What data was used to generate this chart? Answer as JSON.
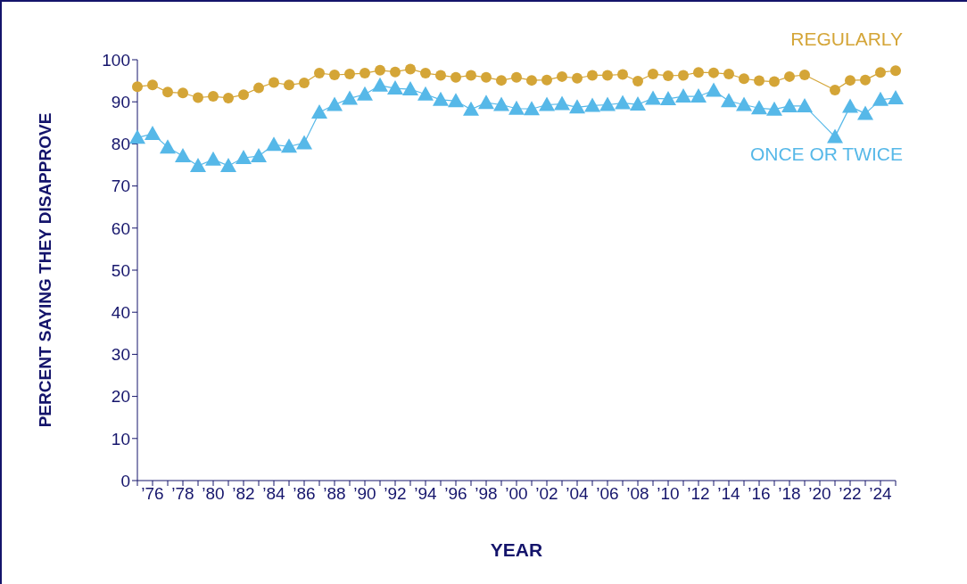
{
  "chart_data": {
    "type": "line",
    "xlabel": "YEAR",
    "ylabel": "PERCENT SAYING THEY DISAPPROVE",
    "categories": [
      null,
      "’76",
      null,
      "’78",
      null,
      "’80",
      null,
      "’82",
      null,
      "’84",
      null,
      "’86",
      null,
      "’88",
      null,
      "’90",
      null,
      "’92",
      null,
      "’94",
      null,
      "’96",
      null,
      "’98",
      null,
      "’00",
      null,
      "’02",
      null,
      "’04",
      null,
      "’06",
      null,
      "’08",
      null,
      "’10",
      null,
      "’12",
      null,
      "’14",
      null,
      "’16",
      null,
      "’18",
      null,
      "’20",
      null,
      "’22",
      null,
      "’24",
      null
    ],
    "ylim": [
      0,
      100
    ],
    "yticks": [
      0,
      10,
      20,
      30,
      40,
      50,
      60,
      70,
      80,
      90,
      100
    ],
    "series": [
      {
        "name": "REGULARLY",
        "color": "#d4a537",
        "marker": "circle",
        "values": [
          93.6,
          94.0,
          92.3,
          92.1,
          91.0,
          91.3,
          90.9,
          91.7,
          93.3,
          94.6,
          94.0,
          94.5,
          96.8,
          96.4,
          96.6,
          96.8,
          97.5,
          97.1,
          97.8,
          96.8,
          96.3,
          95.8,
          96.3,
          95.8,
          95.1,
          95.8,
          95.1,
          95.2,
          96.0,
          95.6,
          96.3,
          96.3,
          96.5,
          94.9,
          96.6,
          96.2,
          96.3,
          97.0,
          96.9,
          96.6,
          95.5,
          95.0,
          94.8,
          96.0,
          96.4,
          null,
          92.8,
          95.1,
          95.2,
          97.0,
          97.4
        ]
      },
      {
        "name": "ONCE OR TWICE",
        "color": "#56b8e8",
        "marker": "triangle",
        "values": [
          81.5,
          82.4,
          79.2,
          77.1,
          74.8,
          76.3,
          74.8,
          76.7,
          77.1,
          79.8,
          79.4,
          80.2,
          87.5,
          89.3,
          90.8,
          91.8,
          93.9,
          93.2,
          93.0,
          91.8,
          90.5,
          90.2,
          88.2,
          89.8,
          89.3,
          88.4,
          88.3,
          89.3,
          89.5,
          88.7,
          89.1,
          89.3,
          89.7,
          89.4,
          90.8,
          90.7,
          91.3,
          91.3,
          92.7,
          90.2,
          89.3,
          88.5,
          88.2,
          89.0,
          89.0,
          null,
          81.7,
          88.9,
          87.2,
          90.5,
          90.9
        ]
      }
    ]
  }
}
